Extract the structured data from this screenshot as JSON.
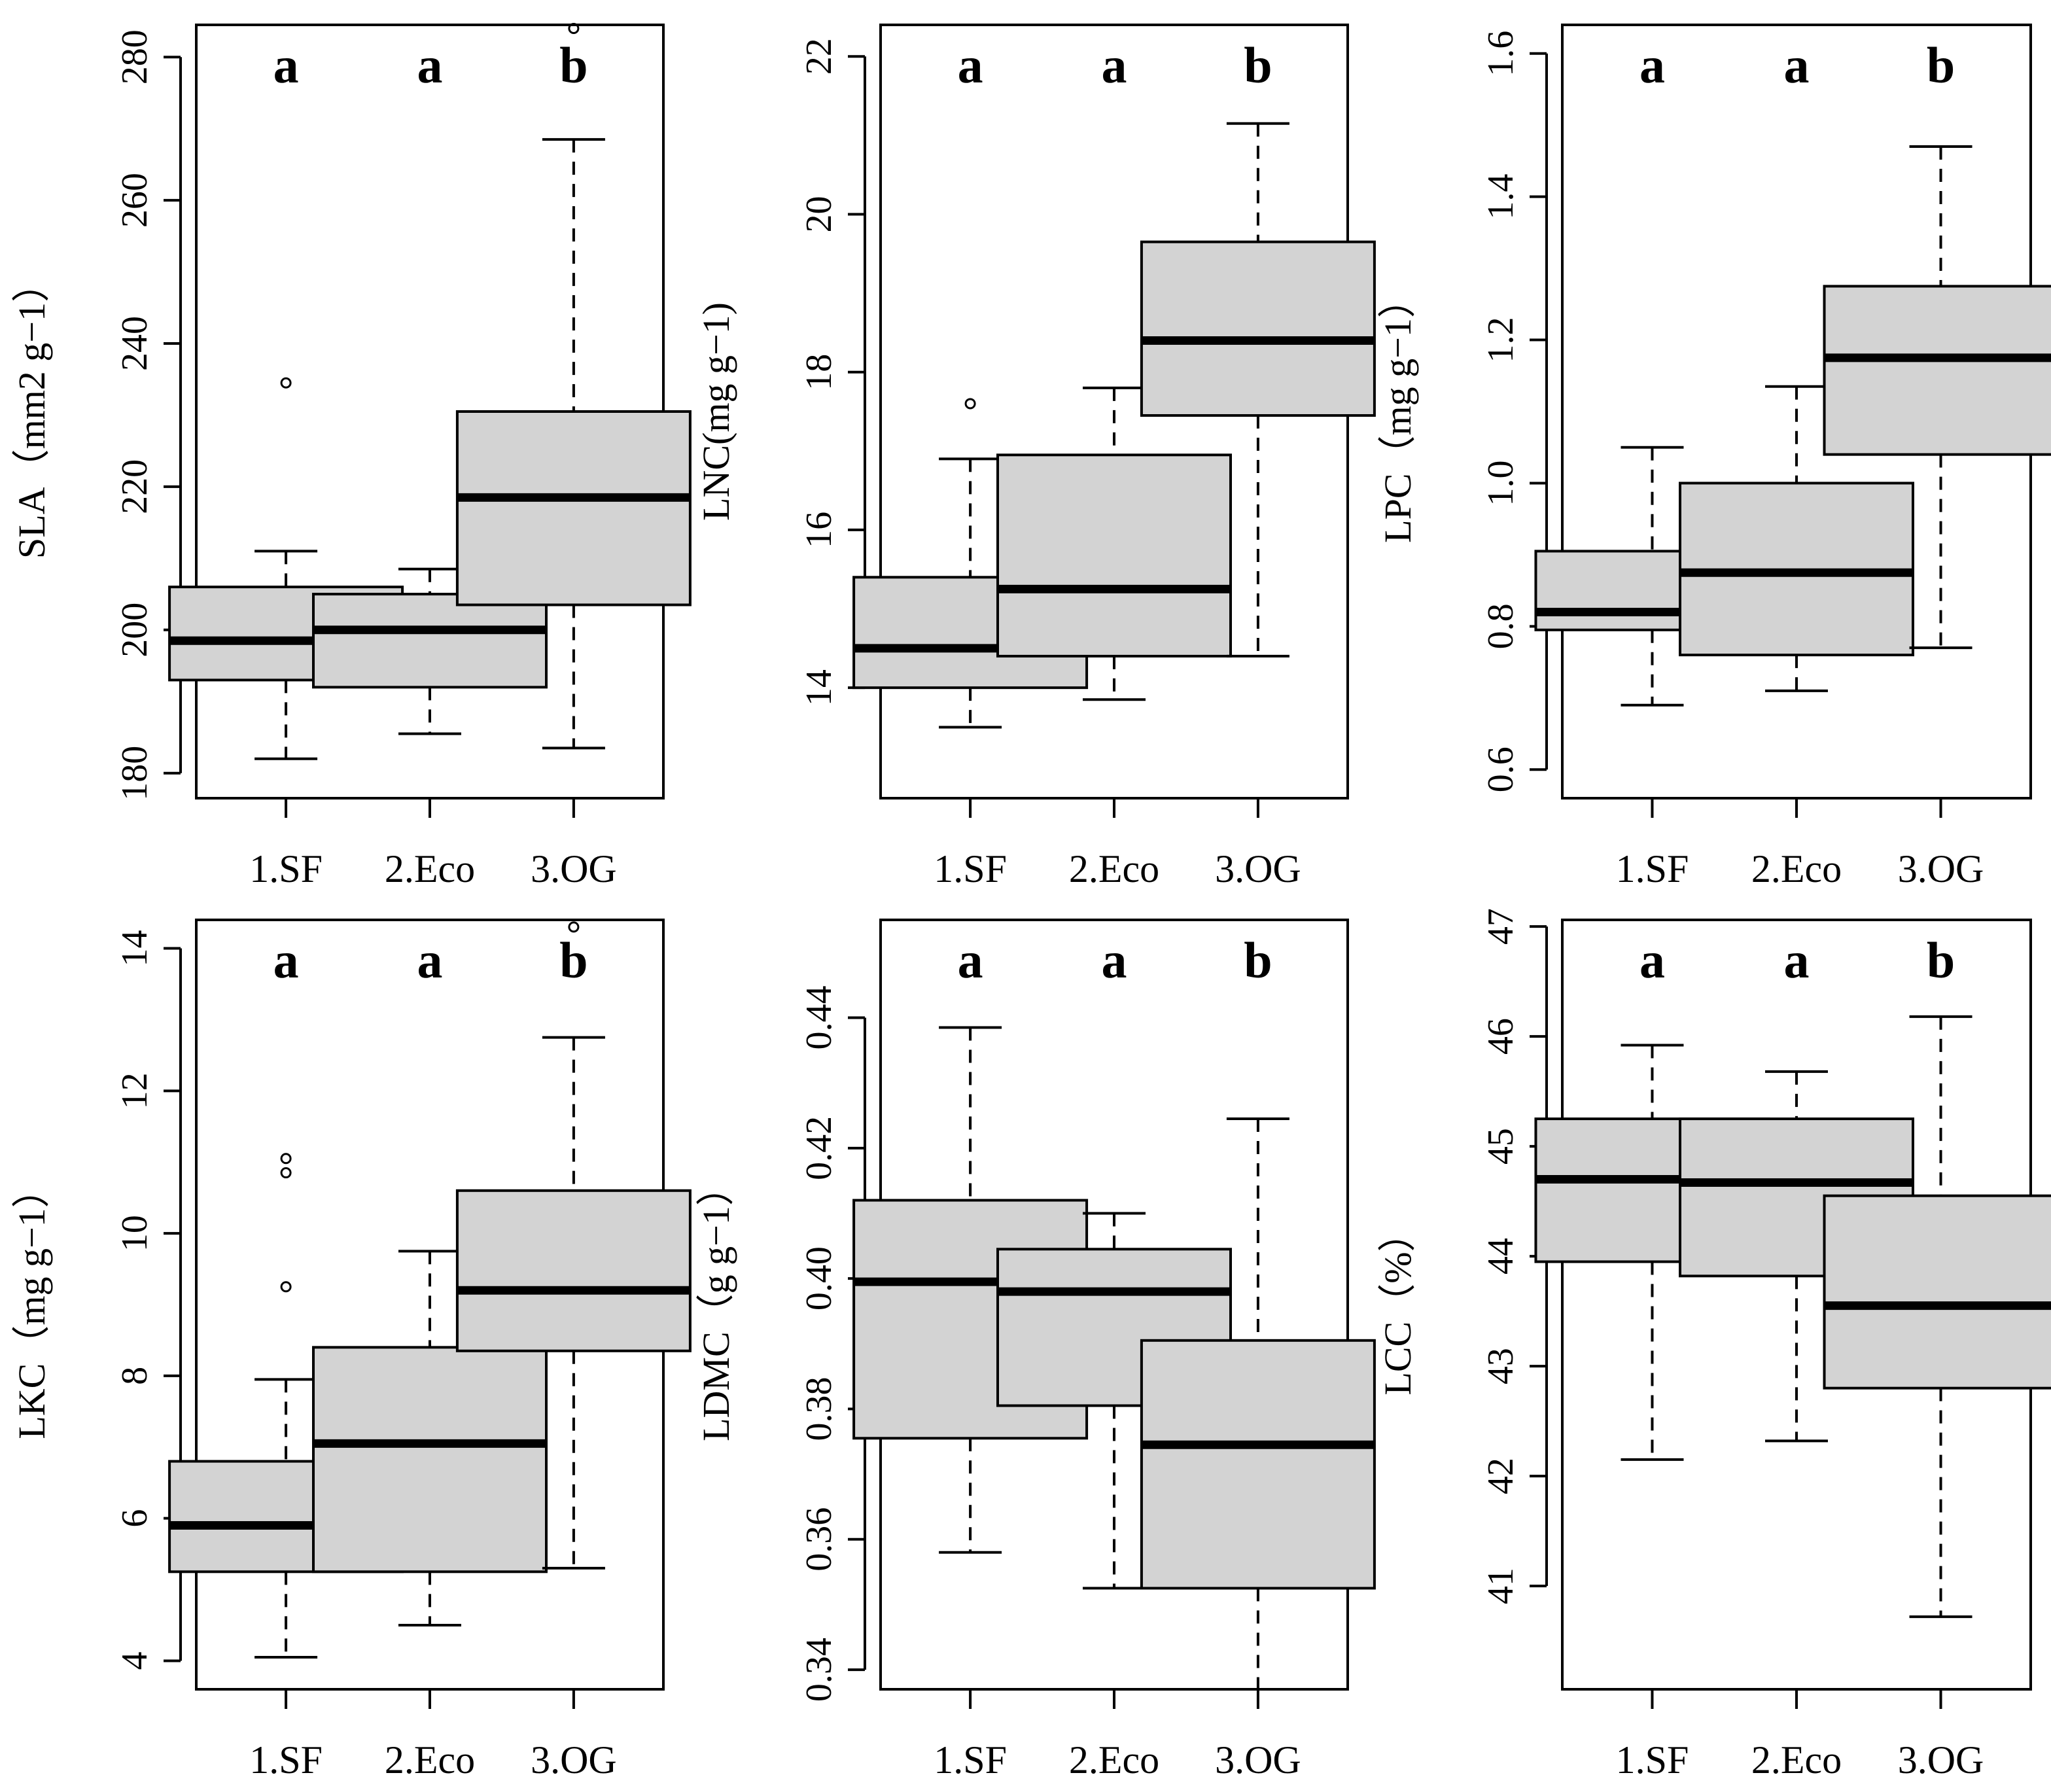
{
  "colors": {
    "box_fill": "#d3d3d3",
    "stroke": "#000000",
    "background": "#ffffff"
  },
  "chart_data": [
    {
      "type": "boxplot",
      "ylabel": "SLA（mm2 g−1）",
      "categories": [
        "1.SF",
        "2.Eco",
        "3.OG"
      ],
      "yticks": [
        180,
        200,
        220,
        240,
        260,
        280
      ],
      "ylim": [
        176.5,
        284.5
      ],
      "letters": [
        "a",
        "a",
        "b"
      ],
      "boxes": [
        {
          "min": 182,
          "q1": 193,
          "median": 198.5,
          "q3": 206,
          "max": 211,
          "outliers": [
            234.5
          ]
        },
        {
          "min": 185.5,
          "q1": 192,
          "median": 200,
          "q3": 205,
          "max": 208.5,
          "outliers": []
        },
        {
          "min": 183.5,
          "q1": 203.5,
          "median": 218.5,
          "q3": 230.5,
          "max": 268.5,
          "outliers": [
            284
          ]
        }
      ]
    },
    {
      "type": "boxplot",
      "ylabel": "LNC(mg g−1)",
      "categories": [
        "1.SF",
        "2.Eco",
        "3.OG"
      ],
      "yticks": [
        14,
        16,
        18,
        20,
        22
      ],
      "ylim": [
        12.6,
        22.4
      ],
      "letters": [
        "a",
        "a",
        "b"
      ],
      "boxes": [
        {
          "min": 13.5,
          "q1": 14,
          "median": 14.5,
          "q3": 15.4,
          "max": 16.9,
          "outliers": [
            17.6
          ]
        },
        {
          "min": 13.85,
          "q1": 14.4,
          "median": 15.25,
          "q3": 16.95,
          "max": 17.8,
          "outliers": []
        },
        {
          "min": 14.4,
          "q1": 17.45,
          "median": 18.4,
          "q3": 19.65,
          "max": 21.15,
          "outliers": []
        }
      ]
    },
    {
      "type": "boxplot",
      "ylabel": "LPC（mg g−1）",
      "categories": [
        "1.SF",
        "2.Eco",
        "3.OG"
      ],
      "yticks": [
        "0.6",
        "0.8",
        "1.0",
        "1.2",
        "1.4",
        "1.6"
      ],
      "ylim": [
        0.56,
        1.64
      ],
      "letters": [
        "a",
        "a",
        "b"
      ],
      "boxes": [
        {
          "min": 0.69,
          "q1": 0.795,
          "median": 0.82,
          "q3": 0.905,
          "max": 1.05,
          "outliers": []
        },
        {
          "min": 0.71,
          "q1": 0.76,
          "median": 0.875,
          "q3": 1.0,
          "max": 1.135,
          "outliers": []
        },
        {
          "min": 0.77,
          "q1": 1.04,
          "median": 1.175,
          "q3": 1.275,
          "max": 1.47,
          "outliers": []
        }
      ]
    },
    {
      "type": "boxplot",
      "ylabel": "LKC（mg g−1）",
      "categories": [
        "1.SF",
        "2.Eco",
        "3.OG"
      ],
      "yticks": [
        4,
        6,
        8,
        10,
        12,
        14
      ],
      "ylim": [
        3.6,
        14.4
      ],
      "letters": [
        "a",
        "a",
        "b"
      ],
      "boxes": [
        {
          "min": 4.05,
          "q1": 5.25,
          "median": 5.9,
          "q3": 6.8,
          "max": 7.95,
          "outliers": [
            9.25,
            10.85,
            11.05
          ]
        },
        {
          "min": 4.5,
          "q1": 5.25,
          "median": 7.05,
          "q3": 8.4,
          "max": 9.75,
          "outliers": []
        },
        {
          "min": 5.3,
          "q1": 8.35,
          "median": 9.2,
          "q3": 10.6,
          "max": 12.75,
          "outliers": [
            14.3
          ]
        }
      ]
    },
    {
      "type": "boxplot",
      "ylabel": "LDMC（g g−1）",
      "categories": [
        "1.SF",
        "2.Eco",
        "3.OG"
      ],
      "yticks": [
        "0.34",
        "0.36",
        "0.38",
        "0.40",
        "0.42",
        "0.44"
      ],
      "ylim": [
        0.337,
        0.455
      ],
      "letters": [
        "a",
        "a",
        "b"
      ],
      "boxes": [
        {
          "min": 0.358,
          "q1": 0.3755,
          "median": 0.3995,
          "q3": 0.412,
          "max": 0.4385,
          "outliers": []
        },
        {
          "min": 0.3525,
          "q1": 0.3805,
          "median": 0.398,
          "q3": 0.4045,
          "max": 0.41,
          "outliers": []
        },
        {
          "min": 0.337,
          "q1": 0.3525,
          "median": 0.3745,
          "q3": 0.3905,
          "max": 0.4245,
          "outliers": []
        }
      ]
    },
    {
      "type": "boxplot",
      "ylabel": "LCC（%）",
      "categories": [
        "1.SF",
        "2.Eco",
        "3.OG"
      ],
      "yticks": [
        41,
        42,
        43,
        44,
        45,
        46,
        47
      ],
      "ylim": [
        40.06,
        47.06
      ],
      "letters": [
        "a",
        "a",
        "b"
      ],
      "boxes": [
        {
          "min": 42.15,
          "q1": 43.95,
          "median": 44.7,
          "q3": 45.25,
          "max": 45.92,
          "outliers": []
        },
        {
          "min": 42.32,
          "q1": 43.82,
          "median": 44.67,
          "q3": 45.25,
          "max": 45.68,
          "outliers": []
        },
        {
          "min": 40.72,
          "q1": 42.8,
          "median": 43.55,
          "q3": 44.55,
          "max": 46.18,
          "outliers": []
        }
      ]
    }
  ]
}
